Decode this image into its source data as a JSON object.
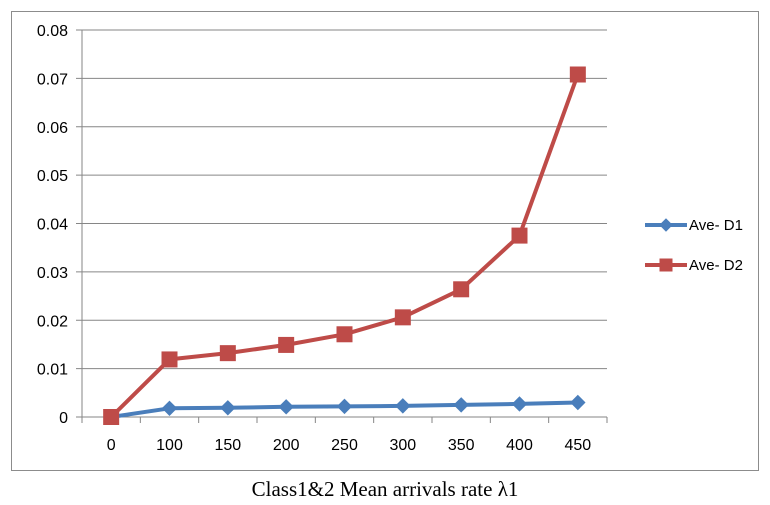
{
  "caption": "Class1&2 Mean arrivals rate λ1",
  "chart_data": {
    "type": "line",
    "title": "",
    "xlabel": "Class1&2 Mean arrivals rate λ1",
    "ylabel": "",
    "categories": [
      "0",
      "100",
      "150",
      "200",
      "250",
      "300",
      "350",
      "400",
      "450"
    ],
    "ylim": [
      0,
      0.08
    ],
    "yticks": [
      "0",
      "0.01",
      "0.02",
      "0.03",
      "0.04",
      "0.05",
      "0.06",
      "0.07",
      "0.08"
    ],
    "grid": "horizontal",
    "legend": "right",
    "series": [
      {
        "name": "Ave- D1",
        "color": "#4a7ebb",
        "marker": "diamond",
        "values": [
          0,
          0.0018,
          0.0019,
          0.0021,
          0.0022,
          0.0023,
          0.0025,
          0.0027,
          0.003
        ]
      },
      {
        "name": "Ave- D2",
        "color": "#be4b48",
        "marker": "square",
        "values": [
          0,
          0.0119,
          0.0132,
          0.0149,
          0.0171,
          0.0206,
          0.0264,
          0.0375,
          0.0708
        ]
      }
    ]
  }
}
